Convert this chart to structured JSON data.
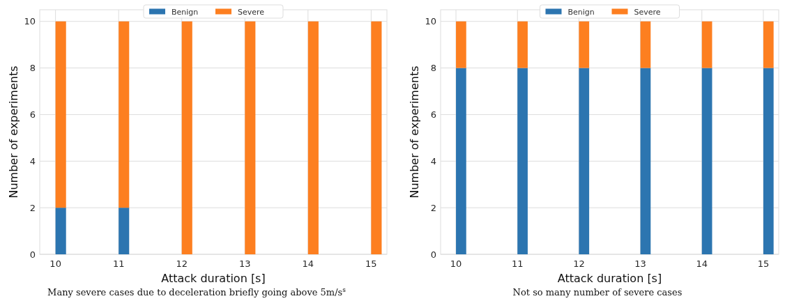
{
  "chart_data": [
    {
      "type": "bar",
      "stacked": true,
      "x": [
        10,
        11,
        12,
        13,
        14,
        15
      ],
      "xlim": [
        9.75,
        15.25
      ],
      "xticks": [
        10,
        11,
        12,
        13,
        14,
        15
      ],
      "ylim": [
        0,
        10.5
      ],
      "yticks": [
        0,
        2,
        4,
        6,
        8,
        10
      ],
      "xlabel": "Attack duration [s]",
      "ylabel": "Number of experiments",
      "grid": true,
      "legend": "top",
      "series": [
        {
          "name": "Benign",
          "color": "#2c75b0",
          "values": [
            2,
            2,
            0,
            0,
            0,
            0
          ]
        },
        {
          "name": "Severe",
          "color": "#fd7f20",
          "values": [
            8,
            8,
            10,
            10,
            10,
            10
          ]
        }
      ],
      "annotations": [
        "Many severe cases due to deceleration briefly going above 5m/s$^{s}$"
      ]
    },
    {
      "type": "bar",
      "stacked": true,
      "x": [
        10,
        11,
        12,
        13,
        14,
        15
      ],
      "xlim": [
        9.75,
        15.25
      ],
      "xticks": [
        10,
        11,
        12,
        13,
        14,
        15
      ],
      "ylim": [
        0,
        10.5
      ],
      "yticks": [
        0,
        2,
        4,
        6,
        8,
        10
      ],
      "xlabel": "Attack duration [s]",
      "ylabel": "Number of experiments",
      "grid": true,
      "legend": "top",
      "series": [
        {
          "name": "Benign",
          "color": "#2c75b0",
          "values": [
            8,
            8,
            8,
            8,
            8,
            8
          ]
        },
        {
          "name": "Severe",
          "color": "#fd7f20",
          "values": [
            2,
            2,
            2,
            2,
            2,
            2
          ]
        }
      ],
      "annotations": [
        "Not so many number of severe cases"
      ]
    }
  ]
}
